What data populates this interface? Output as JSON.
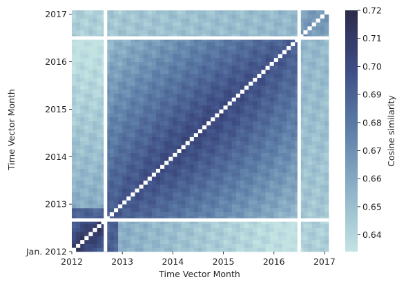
{
  "chart_data": {
    "type": "heatmap",
    "title": "",
    "xlabel": "Time Vector Month",
    "ylabel": "Time Vector Month",
    "x_ticks": [
      "2012",
      "2013",
      "2014",
      "2015",
      "2016",
      "2017"
    ],
    "y_ticks": [
      "Jan. 2012",
      "2013",
      "2014",
      "2015",
      "2016",
      "2017"
    ],
    "n_months": 61,
    "separator_months": [
      8,
      54
    ],
    "diagonal": "white",
    "value_range": [
      0.634,
      0.72
    ],
    "colorbar": {
      "label": "Cosine similarity",
      "ticks": [
        "0.64",
        "0.65",
        "0.66",
        "0.67",
        "0.68",
        "0.69",
        "0.70",
        "0.71",
        "0.72"
      ],
      "tick_values": [
        0.64,
        0.65,
        0.66,
        0.67,
        0.68,
        0.69,
        0.7,
        0.71,
        0.72
      ],
      "range": [
        0.634,
        0.72
      ],
      "colors": [
        "#c3e3e3",
        "#8fb3c8",
        "#5e7fa8",
        "#3e4e85",
        "#2b2a4a"
      ]
    },
    "grid": false,
    "legend": "colorbar-right"
  }
}
